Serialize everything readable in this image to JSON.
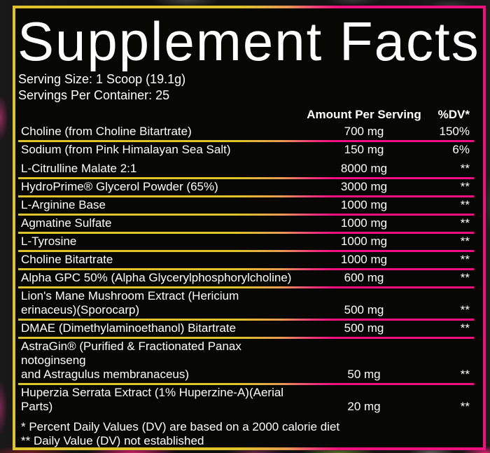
{
  "label": {
    "title": "Supplement Facts",
    "serving_size": "Serving Size: 1 Scoop (19.1g)",
    "servings_per_container": "Servings Per Container: 25",
    "columns": {
      "amount_header": "Amount Per Serving",
      "dv_header": "%DV*"
    },
    "daily_rows": [
      {
        "name": "Choline (from Choline Bitartrate)",
        "amount": "700 mg",
        "dv": "150%"
      },
      {
        "name": "Sodium (from Pink Himalayan Sea Salt)",
        "amount": "150 mg",
        "dv": "6%"
      }
    ],
    "ingredient_rows": [
      {
        "name": "L-Citrulline Malate 2:1",
        "amount": "8000 mg",
        "dv": "**"
      },
      {
        "name": "HydroPrime® Glycerol Powder (65%)",
        "amount": "3000 mg",
        "dv": "**"
      },
      {
        "name": "L-Arginine Base",
        "amount": "1000 mg",
        "dv": "**"
      },
      {
        "name": "Agmatine Sulfate",
        "amount": "1000 mg",
        "dv": "**"
      },
      {
        "name": "L-Tyrosine",
        "amount": "1000 mg",
        "dv": "**"
      },
      {
        "name": "Choline Bitartrate",
        "amount": "1000 mg",
        "dv": "**"
      },
      {
        "name": "Alpha GPC 50% (Alpha Glycerylphosphorylcholine)",
        "amount": "600 mg",
        "dv": "**"
      },
      {
        "name": "Lion's Mane Mushroom Extract (Hericium\nerinaceus)(Sporocarp)",
        "amount": "500 mg",
        "dv": "**"
      },
      {
        "name": "DMAE (Dimethylaminoethanol) Bitartrate",
        "amount": "500 mg",
        "dv": "**"
      },
      {
        "name": "AstraGin® (Purified & Fractionated Panax notoginseng\nand Astragulus membranaceus)",
        "amount": "50 mg",
        "dv": "**"
      },
      {
        "name": "Huperzia Serrata Extract (1% Huperzine-A)(Aerial Parts)",
        "amount": "20 mg",
        "dv": "**"
      }
    ],
    "footnotes": [
      "* Percent Daily Values (DV) are based on a 2000 calorie diet",
      "** Daily Value (DV) not established"
    ],
    "colors": {
      "gradient_yellow": "#ddc42a",
      "gradient_pink": "#f00f7e",
      "text": "#ffffff",
      "label_background": "#070706"
    }
  }
}
